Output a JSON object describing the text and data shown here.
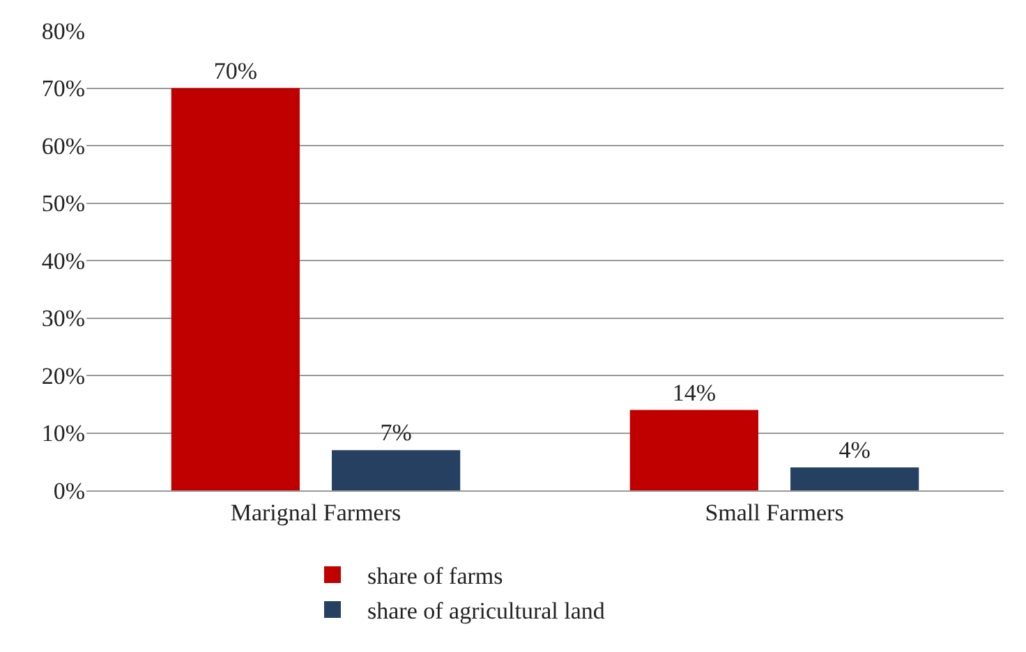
{
  "chart_data": {
    "type": "bar",
    "categories": [
      "Marignal Farmers",
      "Small Farmers"
    ],
    "series": [
      {
        "name": "share of farms",
        "color": "#c00000",
        "values": [
          70,
          14
        ],
        "value_labels": [
          "70%",
          "14%"
        ]
      },
      {
        "name": "share of agricultural land",
        "color": "#254061",
        "values": [
          7,
          4
        ],
        "value_labels": [
          "7%",
          "4%"
        ]
      }
    ],
    "ylim": [
      0,
      80
    ],
    "yticks": [
      {
        "value": 0,
        "label": "0%"
      },
      {
        "value": 10,
        "label": "10%"
      },
      {
        "value": 20,
        "label": "20%"
      },
      {
        "value": 30,
        "label": "30%"
      },
      {
        "value": 40,
        "label": "40%"
      },
      {
        "value": 50,
        "label": "50%"
      },
      {
        "value": 60,
        "label": "60%"
      },
      {
        "value": 70,
        "label": "70%"
      },
      {
        "value": 80,
        "label": "80%"
      }
    ],
    "grid": "y",
    "legend": "bottom"
  }
}
